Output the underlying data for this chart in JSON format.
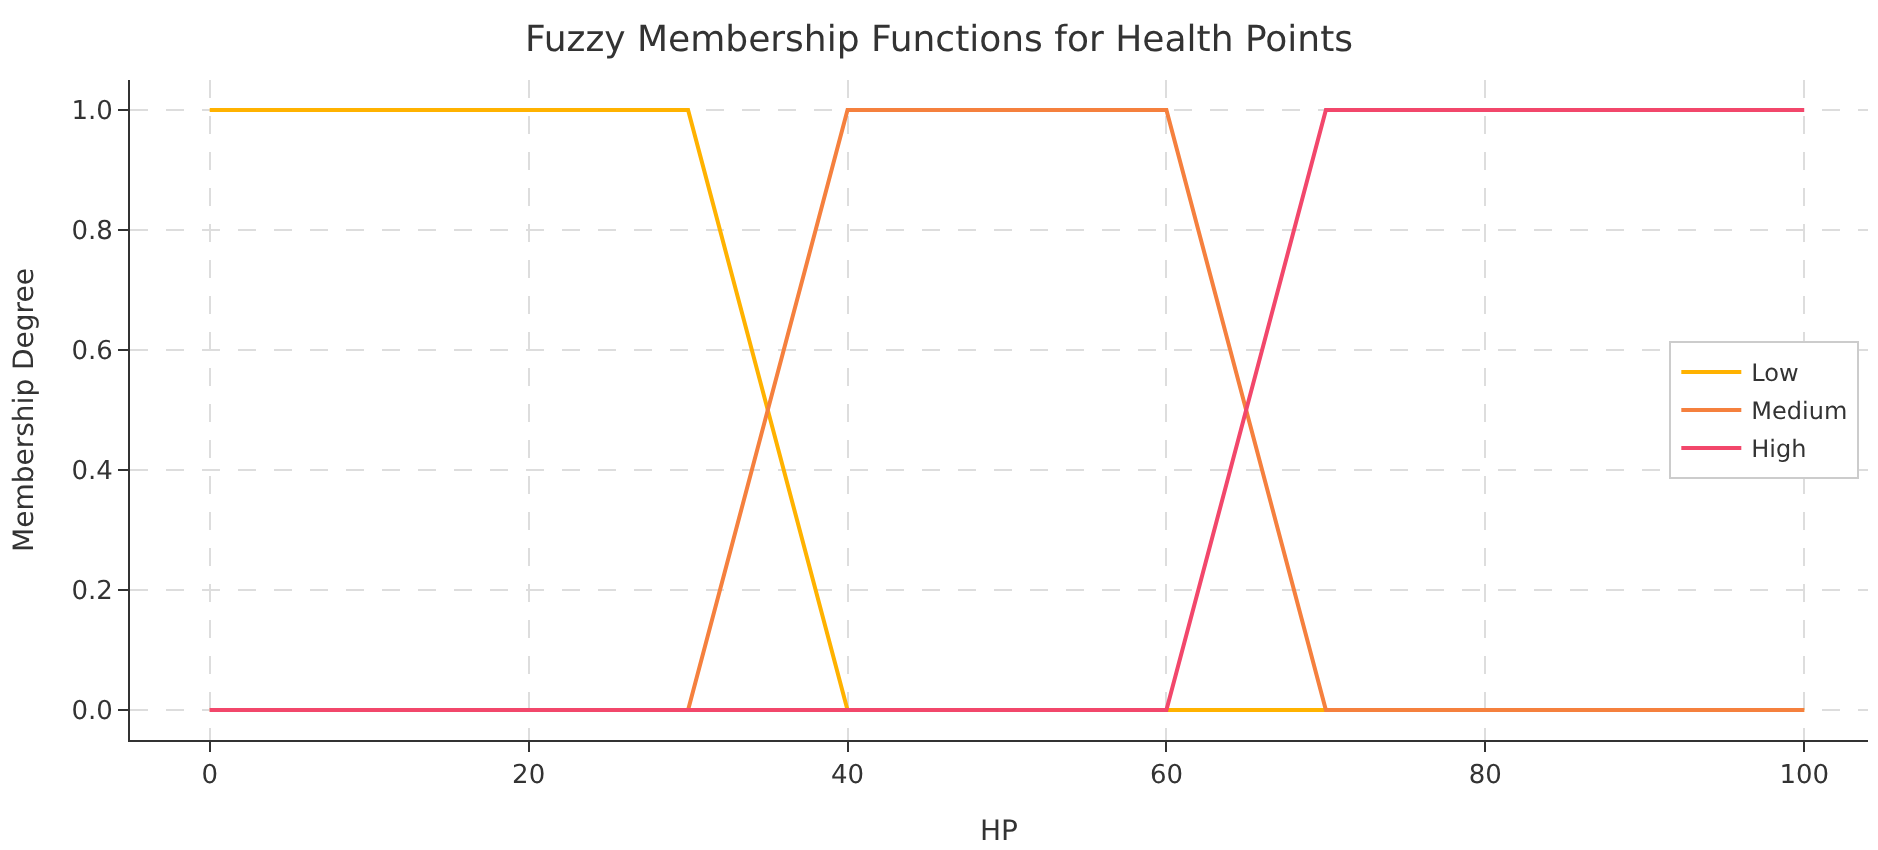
{
  "chart_data": {
    "type": "line",
    "title": "Fuzzy Membership Functions for Health Points",
    "xlabel": "HP",
    "ylabel": "Membership Degree",
    "series": [
      {
        "name": "Low",
        "color": "#ffb200",
        "x": [
          0,
          30,
          40,
          100
        ],
        "values": [
          1,
          1,
          0,
          0
        ]
      },
      {
        "name": "Medium",
        "color": "#f5803e",
        "x": [
          0,
          30,
          40,
          60,
          70,
          100
        ],
        "values": [
          0,
          0,
          1,
          1,
          0,
          0
        ]
      },
      {
        "name": "High",
        "color": "#f2476b",
        "x": [
          0,
          60,
          70,
          100
        ],
        "values": [
          0,
          0,
          1,
          1
        ]
      }
    ],
    "xlim": [
      -5,
      104
    ],
    "ylim": [
      -0.05,
      1.05
    ],
    "xticks": [
      0,
      20,
      40,
      60,
      80,
      100
    ],
    "yticks": [
      {
        "value": 0,
        "label": "0.0"
      },
      {
        "value": 0.2,
        "label": "0.2"
      },
      {
        "value": 0.4,
        "label": "0.4"
      },
      {
        "value": 0.6,
        "label": "0.6"
      },
      {
        "value": 0.8,
        "label": "0.8"
      },
      {
        "value": 1,
        "label": "1.0"
      }
    ],
    "grid": true,
    "legend": "right",
    "line_style": "solid",
    "marker": "none"
  }
}
